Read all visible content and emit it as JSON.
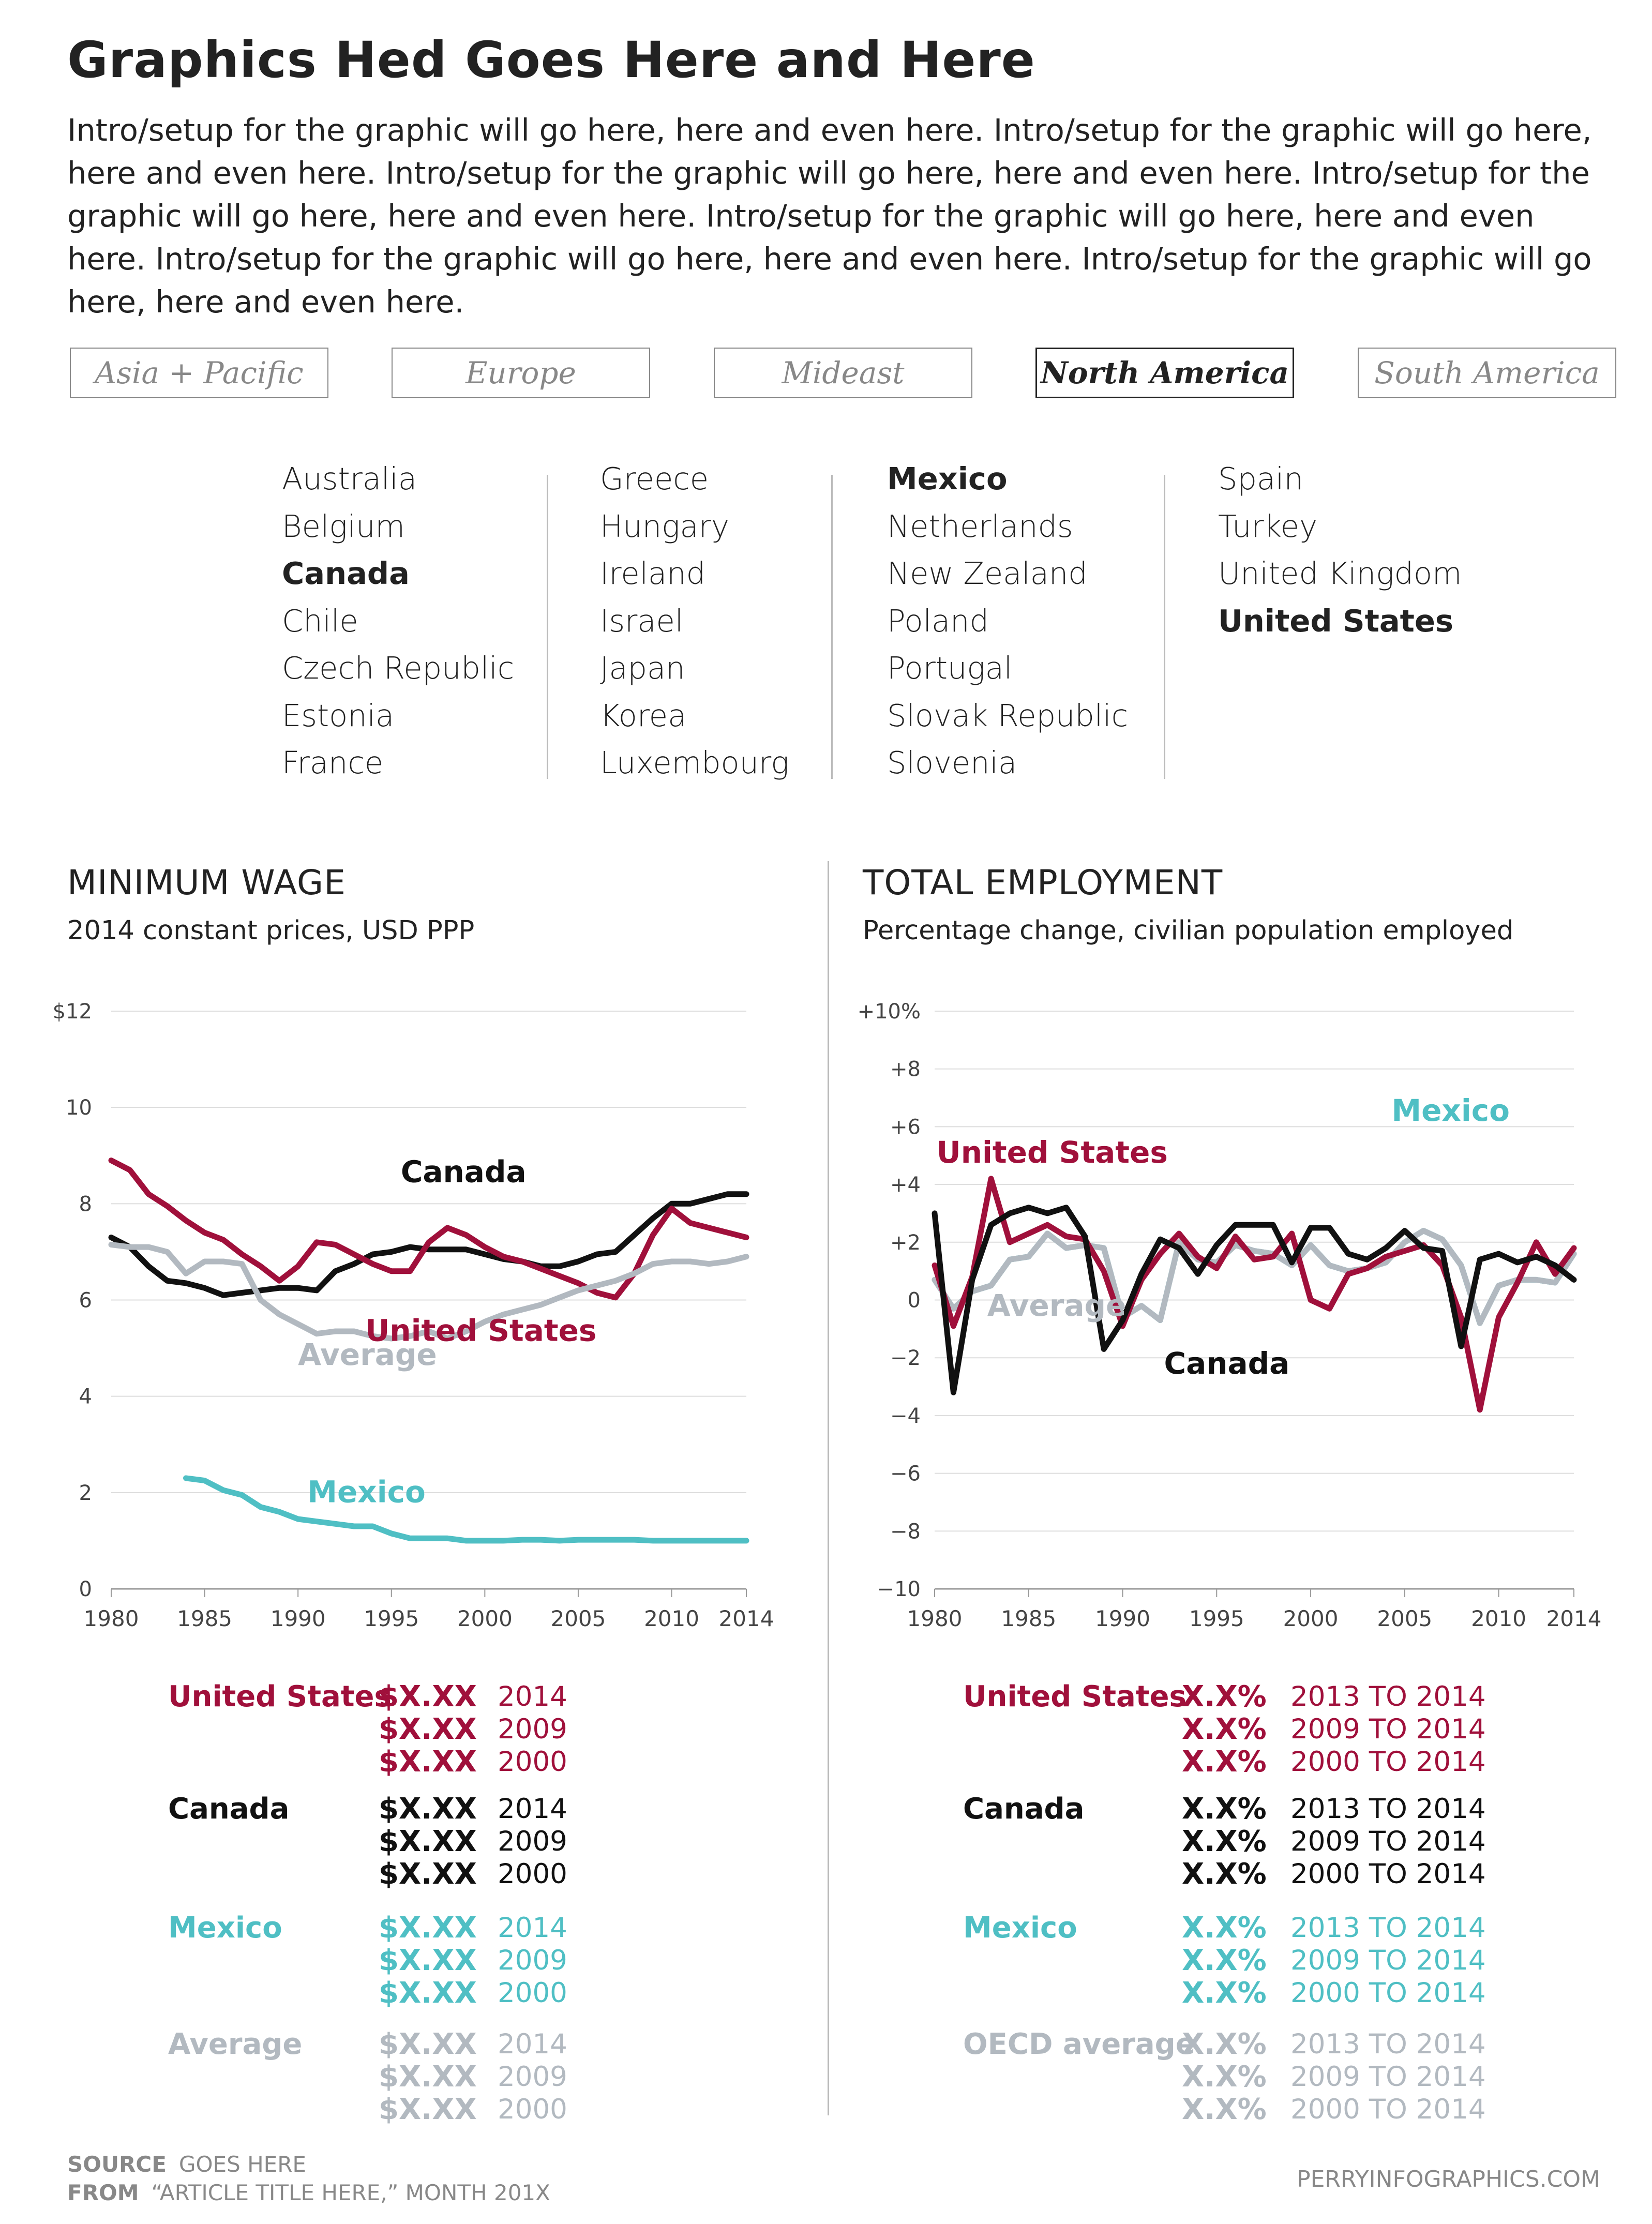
{
  "title": "Graphics Hed Goes Here and Here",
  "intro": "Intro/setup for the graphic will go here, here and even here. Intro/setup for the graphic will go here, here and even here. Intro/setup for the graphic will go here, here and even here. Intro/setup for the graphic will go here, here and even here. Intro/setup for the graphic will go here, here and even here. Intro/setup for the graphic will go here, here and even here. Intro/setup for the graphic will go here, here and even here.",
  "tabs": [
    {
      "label": "Asia + Pacific",
      "active": false
    },
    {
      "label": "Europe",
      "active": false
    },
    {
      "label": "Mideast",
      "active": false
    },
    {
      "label": "North America",
      "active": true
    },
    {
      "label": "South America",
      "active": false
    }
  ],
  "countries": [
    [
      {
        "name": "Australia",
        "hl": false
      },
      {
        "name": "Belgium",
        "hl": false
      },
      {
        "name": "Canada",
        "hl": true
      },
      {
        "name": "Chile",
        "hl": false
      },
      {
        "name": "Czech Republic",
        "hl": false
      },
      {
        "name": "Estonia",
        "hl": false
      },
      {
        "name": "France",
        "hl": false
      }
    ],
    [
      {
        "name": "Greece",
        "hl": false
      },
      {
        "name": "Hungary",
        "hl": false
      },
      {
        "name": "Ireland",
        "hl": false
      },
      {
        "name": "Israel",
        "hl": false
      },
      {
        "name": "Japan",
        "hl": false
      },
      {
        "name": "Korea",
        "hl": false
      },
      {
        "name": "Luxembourg",
        "hl": false
      }
    ],
    [
      {
        "name": "Mexico",
        "hl": true
      },
      {
        "name": "Netherlands",
        "hl": false
      },
      {
        "name": "New Zealand",
        "hl": false
      },
      {
        "name": "Poland",
        "hl": false
      },
      {
        "name": "Portugal",
        "hl": false
      },
      {
        "name": "Slovak Republic",
        "hl": false
      },
      {
        "name": "Slovenia",
        "hl": false
      }
    ],
    [
      {
        "name": "Spain",
        "hl": false
      },
      {
        "name": "Turkey",
        "hl": false
      },
      {
        "name": "United Kingdom",
        "hl": false
      },
      {
        "name": "United States",
        "hl": true
      }
    ]
  ],
  "colors": {
    "us": "#a0103b",
    "canada": "#111111",
    "mexico": "#4fbfc4",
    "average": "#b2b9c0",
    "grid": "#dddddd",
    "axis": "#999999",
    "text": "#222222"
  },
  "chart_data": [
    {
      "type": "line",
      "title": "MINIMUM WAGE",
      "subtitle": "2014 constant prices, USD PPP",
      "xlim": [
        1980,
        2014
      ],
      "ylim": [
        0,
        12
      ],
      "x_ticks": [
        1980,
        1985,
        1990,
        1995,
        2000,
        2005,
        2010,
        2014
      ],
      "x_tick_labels": [
        "1980",
        "1985",
        "1990",
        "1995",
        "2000",
        "2005",
        "2010",
        "2014"
      ],
      "y_ticks": [
        0,
        2,
        4,
        6,
        8,
        10,
        12
      ],
      "y_tick_labels": [
        "0",
        "2",
        "4",
        "6",
        "8",
        "10",
        "$12"
      ],
      "grid": true,
      "series": [
        {
          "name": "Canada",
          "key": "canada",
          "label_at": [
            1995.5,
            8.45
          ],
          "x": [
            1980,
            1981,
            1982,
            1983,
            1984,
            1985,
            1986,
            1987,
            1988,
            1989,
            1990,
            1991,
            1992,
            1993,
            1994,
            1995,
            1996,
            1997,
            1998,
            1999,
            2000,
            2001,
            2002,
            2003,
            2004,
            2005,
            2006,
            2007,
            2008,
            2009,
            2010,
            2011,
            2012,
            2013,
            2014
          ],
          "y": [
            7.3,
            7.1,
            6.7,
            6.4,
            6.35,
            6.25,
            6.1,
            6.15,
            6.2,
            6.25,
            6.25,
            6.2,
            6.6,
            6.75,
            6.95,
            7.0,
            7.1,
            7.05,
            7.05,
            7.05,
            6.95,
            6.85,
            6.8,
            6.7,
            6.7,
            6.8,
            6.95,
            7.0,
            7.35,
            7.7,
            8.0,
            8.0,
            8.1,
            8.2,
            8.2
          ]
        },
        {
          "name": "United States",
          "key": "us",
          "label_at": [
            1993.6,
            5.15
          ],
          "x": [
            1980,
            1981,
            1982,
            1983,
            1984,
            1985,
            1986,
            1987,
            1988,
            1989,
            1990,
            1991,
            1992,
            1993,
            1994,
            1995,
            1996,
            1997,
            1998,
            1999,
            2000,
            2001,
            2002,
            2003,
            2004,
            2005,
            2006,
            2007,
            2008,
            2009,
            2010,
            2011,
            2012,
            2013,
            2014
          ],
          "y": [
            8.9,
            8.7,
            8.2,
            7.95,
            7.65,
            7.4,
            7.25,
            6.95,
            6.7,
            6.4,
            6.7,
            7.2,
            7.15,
            6.95,
            6.75,
            6.6,
            6.6,
            7.2,
            7.5,
            7.35,
            7.1,
            6.9,
            6.8,
            6.65,
            6.5,
            6.35,
            6.15,
            6.05,
            6.55,
            7.35,
            7.9,
            7.6,
            7.5,
            7.4,
            7.3
          ]
        },
        {
          "name": "Average",
          "key": "average",
          "label_at": [
            1990.0,
            4.65
          ],
          "x": [
            1980,
            1981,
            1982,
            1983,
            1984,
            1985,
            1986,
            1987,
            1988,
            1989,
            1990,
            1991,
            1992,
            1993,
            1994,
            1995,
            1996,
            1997,
            1998,
            1999,
            2000,
            2001,
            2002,
            2003,
            2004,
            2005,
            2006,
            2007,
            2008,
            2009,
            2010,
            2011,
            2012,
            2013,
            2014
          ],
          "y": [
            7.15,
            7.1,
            7.1,
            7.0,
            6.55,
            6.8,
            6.8,
            6.75,
            6.0,
            5.7,
            5.5,
            5.3,
            5.35,
            5.35,
            5.25,
            5.2,
            5.25,
            5.35,
            5.2,
            5.35,
            5.55,
            5.7,
            5.8,
            5.9,
            6.05,
            6.2,
            6.3,
            6.4,
            6.55,
            6.75,
            6.8,
            6.8,
            6.75,
            6.8,
            6.9
          ]
        },
        {
          "name": "Mexico",
          "key": "mexico",
          "label_at": [
            1990.5,
            1.8
          ],
          "x": [
            1984,
            1985,
            1986,
            1987,
            1988,
            1989,
            1990,
            1991,
            1992,
            1993,
            1994,
            1995,
            1996,
            1997,
            1998,
            1999,
            2000,
            2001,
            2002,
            2003,
            2004,
            2005,
            2006,
            2007,
            2008,
            2009,
            2010,
            2011,
            2012,
            2013,
            2014
          ],
          "y": [
            2.3,
            2.25,
            2.05,
            1.95,
            1.7,
            1.6,
            1.45,
            1.4,
            1.35,
            1.3,
            1.3,
            1.15,
            1.05,
            1.05,
            1.05,
            1.0,
            1.0,
            1.0,
            1.02,
            1.02,
            1.0,
            1.02,
            1.02,
            1.02,
            1.02,
            1.0,
            1.0,
            1.0,
            1.0,
            1.0,
            1.0
          ]
        }
      ]
    },
    {
      "type": "line",
      "title": "TOTAL EMPLOYMENT",
      "subtitle": "Percentage change,  civilian population employed",
      "xlim": [
        1980,
        2014
      ],
      "ylim": [
        -10,
        10
      ],
      "x_ticks": [
        1980,
        1985,
        1990,
        1995,
        2000,
        2005,
        2010,
        2014
      ],
      "x_tick_labels": [
        "1980",
        "1985",
        "1990",
        "1995",
        "2000",
        "2005",
        "2010",
        "2014"
      ],
      "y_ticks": [
        -10,
        -8,
        -6,
        -4,
        -2,
        0,
        2,
        4,
        6,
        8,
        10
      ],
      "y_tick_labels": [
        "−10",
        "−8",
        "−6",
        "−4",
        "−2",
        "0",
        "+2",
        "+4",
        "+6",
        "+8",
        "+10%"
      ],
      "grid": true,
      "series": [
        {
          "name": "Mexico",
          "key": "mexico",
          "label_at": [
            2004.3,
            6.2
          ],
          "x": [
            1980,
            1981,
            1982,
            1983,
            1984,
            1985,
            1986,
            1987,
            1988,
            1989,
            1990,
            1991,
            1992,
            1993,
            1994,
            1995,
            1996,
            1997,
            1998,
            1999,
            2000,
            2001,
            2002,
            2003,
            2004,
            2005,
            2006,
            2007,
            2008,
            2009,
            2010,
            2011,
            2012,
            2013,
            2014
          ],
          "y": [
            0.7,
            -0.3,
            0.3,
            0.5,
            1.4,
            1.5,
            2.3,
            1.8,
            1.9,
            1.8,
            -0.6,
            -0.2,
            -0.7,
            2.0,
            1.4,
            1.3,
            1.9,
            1.7,
            1.6,
            1.2,
            1.9,
            1.2,
            1.0,
            1.1,
            1.3,
            2.0,
            2.4,
            2.1,
            1.2,
            -0.8,
            0.5,
            0.7,
            0.7,
            0.6,
            1.6
          ]
        },
        {
          "name": "Average",
          "key": "average",
          "label_at": [
            1982.8,
            -0.55
          ],
          "x": [
            1980,
            1981,
            1982,
            1983,
            1984,
            1985,
            1986,
            1987,
            1988,
            1989,
            1990,
            1991,
            1992,
            1993,
            1994,
            1995,
            1996,
            1997,
            1998,
            1999,
            2000,
            2001,
            2002,
            2003,
            2004,
            2005,
            2006,
            2007,
            2008,
            2009,
            2010,
            2011,
            2012,
            2013,
            2014
          ],
          "y": [
            0.7,
            -0.3,
            0.3,
            0.5,
            1.4,
            1.5,
            2.3,
            1.8,
            1.9,
            1.8,
            -0.6,
            -0.2,
            -0.7,
            2.0,
            1.4,
            1.3,
            1.9,
            1.7,
            1.6,
            1.2,
            1.9,
            1.2,
            1.0,
            1.1,
            1.3,
            2.0,
            2.4,
            2.1,
            1.2,
            -0.8,
            0.5,
            0.7,
            0.7,
            0.6,
            1.6
          ]
        },
        {
          "name": "United States",
          "key": "us",
          "label_at": [
            1980.1,
            4.75
          ],
          "x": [
            1980,
            1981,
            1982,
            1983,
            1984,
            1985,
            1986,
            1987,
            1988,
            1989,
            1990,
            1991,
            1992,
            1993,
            1994,
            1995,
            1996,
            1997,
            1998,
            1999,
            2000,
            2001,
            2002,
            2003,
            2004,
            2005,
            2006,
            2007,
            2008,
            2009,
            2010,
            2011,
            2012,
            2013,
            2014
          ],
          "y": [
            1.2,
            -0.9,
            0.8,
            4.2,
            2.0,
            2.3,
            2.6,
            2.2,
            2.1,
            1.0,
            -0.9,
            0.7,
            1.6,
            2.3,
            1.5,
            1.1,
            2.2,
            1.4,
            1.5,
            2.3,
            0.0,
            -0.3,
            0.9,
            1.1,
            1.5,
            1.7,
            1.9,
            1.2,
            -0.6,
            -3.8,
            -0.6,
            0.6,
            2.0,
            0.9,
            1.8
          ]
        },
        {
          "name": "Canada",
          "key": "canada",
          "label_at": [
            1992.2,
            -2.55
          ],
          "x": [
            1980,
            1981,
            1982,
            1983,
            1984,
            1985,
            1986,
            1987,
            1988,
            1989,
            1990,
            1991,
            1992,
            1993,
            1994,
            1995,
            1996,
            1997,
            1998,
            1999,
            2000,
            2001,
            2002,
            2003,
            2004,
            2005,
            2006,
            2007,
            2008,
            2009,
            2010,
            2011,
            2012,
            2013,
            2014
          ],
          "y": [
            3.0,
            -3.2,
            0.7,
            2.6,
            3.0,
            3.2,
            3.0,
            3.2,
            2.2,
            -1.7,
            -0.7,
            0.9,
            2.1,
            1.8,
            0.9,
            1.9,
            2.6,
            2.6,
            2.6,
            1.3,
            2.5,
            2.5,
            1.6,
            1.4,
            1.8,
            2.4,
            1.8,
            1.7,
            -1.6,
            1.4,
            1.6,
            1.3,
            1.5,
            1.2,
            0.7
          ]
        }
      ]
    }
  ],
  "left_section": {
    "title": "MINIMUM WAGE",
    "subtitle": "2014 constant prices, USD PPP"
  },
  "right_section": {
    "title": "TOTAL EMPLOYMENT",
    "subtitle": "Percentage change,  civilian population employed"
  },
  "wage_legend": [
    {
      "name": "United States",
      "key": "us",
      "rows": [
        {
          "value": "$X.XX",
          "year": "2014"
        },
        {
          "value": "$X.XX",
          "year": "2009"
        },
        {
          "value": "$X.XX",
          "year": "2000"
        }
      ]
    },
    {
      "name": "Canada",
      "key": "canada",
      "rows": [
        {
          "value": "$X.XX",
          "year": "2014"
        },
        {
          "value": "$X.XX",
          "year": "2009"
        },
        {
          "value": "$X.XX",
          "year": "2000"
        }
      ]
    },
    {
      "name": "Mexico",
      "key": "mexico",
      "rows": [
        {
          "value": "$X.XX",
          "year": "2014"
        },
        {
          "value": "$X.XX",
          "year": "2009"
        },
        {
          "value": "$X.XX",
          "year": "2000"
        }
      ]
    },
    {
      "name": "Average",
      "key": "average",
      "rows": [
        {
          "value": "$X.XX",
          "year": "2014"
        },
        {
          "value": "$X.XX",
          "year": "2009"
        },
        {
          "value": "$X.XX",
          "year": "2000"
        }
      ]
    }
  ],
  "employment_legend": [
    {
      "name": "United States",
      "key": "us",
      "rows": [
        {
          "value": "X.X%",
          "year": "2013 TO 2014"
        },
        {
          "value": "X.X%",
          "year": "2009 TO 2014"
        },
        {
          "value": "X.X%",
          "year": "2000 TO 2014"
        }
      ]
    },
    {
      "name": "Canada",
      "key": "canada",
      "rows": [
        {
          "value": "X.X%",
          "year": "2013 TO 2014"
        },
        {
          "value": "X.X%",
          "year": "2009 TO 2014"
        },
        {
          "value": "X.X%",
          "year": "2000 TO 2014"
        }
      ]
    },
    {
      "name": "Mexico",
      "key": "mexico",
      "rows": [
        {
          "value": "X.X%",
          "year": "2013 TO 2014"
        },
        {
          "value": "X.X%",
          "year": "2009 TO 2014"
        },
        {
          "value": "X.X%",
          "year": "2000 TO 2014"
        }
      ]
    },
    {
      "name": "OECD average",
      "key": "average",
      "rows": [
        {
          "value": "X.X%",
          "year": "2013 TO 2014"
        },
        {
          "value": "X.X%",
          "year": "2009 TO 2014"
        },
        {
          "value": "X.X%",
          "year": "2000 TO 2014"
        }
      ]
    }
  ],
  "footer": {
    "source_label": "SOURCE",
    "source_text": "GOES HERE",
    "from_label": "FROM",
    "from_text": "“ARTICLE TITLE HERE,” MONTH 201X",
    "credit": "PERRYINFOGRAPHICS.COM"
  }
}
